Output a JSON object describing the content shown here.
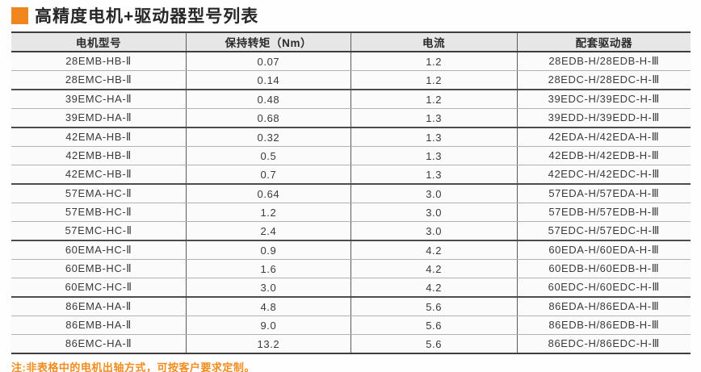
{
  "page": {
    "title": "高精度电机+驱动器型号列表",
    "note": "注:非表格中的电机出轴方式，可按客户要求定制。"
  },
  "colors": {
    "accent": "#f0861e",
    "note": "#f28c1e",
    "header_bg": "#e7e7e7",
    "border_dark": "#3d3d3d"
  },
  "table": {
    "headers": {
      "motor_model": "电机型号",
      "holding_torque": "保持转矩（Nm）",
      "current": "电流",
      "matching_driver": "配套驱动器"
    },
    "rows": [
      {
        "model": "28EMB-HB-Ⅱ",
        "torque": "0.07",
        "current": "1.2",
        "driver": "28EDB-H/28EDB-H-Ⅲ"
      },
      {
        "model": "28EMC-HB-Ⅱ",
        "torque": "0.14",
        "current": "1.2",
        "driver": "28EDC-H/28EDC-H-Ⅲ"
      },
      {
        "model": "39EMC-HA-Ⅱ",
        "torque": "0.48",
        "current": "1.2",
        "driver": "39EDC-H/39EDC-H-Ⅲ"
      },
      {
        "model": "39EMD-HA-Ⅱ",
        "torque": "0.68",
        "current": "1.3",
        "driver": "39EDD-H/39EDD-H-Ⅲ"
      },
      {
        "model": "42EMA-HB-Ⅱ",
        "torque": "0.32",
        "current": "1.3",
        "driver": "42EDA-H/42EDA-H-Ⅲ"
      },
      {
        "model": "42EMB-HB-Ⅱ",
        "torque": "0.5",
        "current": "1.3",
        "driver": "42EDB-H/42EDB-H-Ⅲ"
      },
      {
        "model": "42EMC-HB-Ⅱ",
        "torque": "0.7",
        "current": "1.3",
        "driver": "42EDC-H/42EDC-H-Ⅲ"
      },
      {
        "model": "57EMA-HC-Ⅱ",
        "torque": "0.64",
        "current": "3.0",
        "driver": "57EDA-H/57EDA-H-Ⅲ"
      },
      {
        "model": "57EMB-HC-Ⅱ",
        "torque": "1.2",
        "current": "3.0",
        "driver": "57EDB-H/57EDB-H-Ⅲ"
      },
      {
        "model": "57EMC-HC-Ⅱ",
        "torque": "2.4",
        "current": "3.0",
        "driver": "57EDC-H/57EDC-H-Ⅲ"
      },
      {
        "model": "60EMA-HC-Ⅱ",
        "torque": "0.9",
        "current": "4.2",
        "driver": "60EDA-H/60EDA-H-Ⅲ"
      },
      {
        "model": "60EMB-HC-Ⅱ",
        "torque": "1.6",
        "current": "4.2",
        "driver": "60EDB-H/60EDB-H-Ⅲ"
      },
      {
        "model": "60EMC-HC-Ⅱ",
        "torque": "3.0",
        "current": "4.2",
        "driver": "60EDC-H/60EDC-H-Ⅲ"
      },
      {
        "model": "86EMA-HA-Ⅱ",
        "torque": "4.8",
        "current": "5.6",
        "driver": "86EDA-H/86EDA-H-Ⅲ"
      },
      {
        "model": "86EMB-HA-Ⅱ",
        "torque": "9.0",
        "current": "5.6",
        "driver": "86EDB-H/86EDB-H-Ⅲ"
      },
      {
        "model": "86EMC-HA-Ⅱ",
        "torque": "13.2",
        "current": "5.6",
        "driver": "86EDC-H/86EDC-H-Ⅲ"
      }
    ]
  }
}
